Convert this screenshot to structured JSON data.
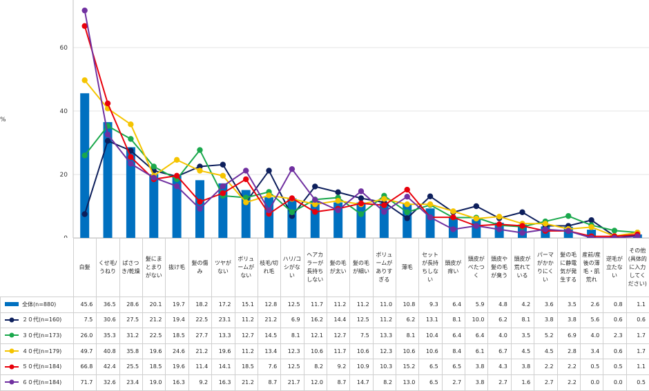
{
  "chart_data": {
    "type": "bar+line",
    "yaxis_unit": "%",
    "ylim": [
      0,
      80
    ],
    "yticks": [
      0,
      20,
      40,
      60
    ],
    "grid": true,
    "categories": [
      "白髪",
      "くせ毛/うねり",
      "ぱさつき/乾燥",
      "髪にまとまりがない",
      "抜け毛",
      "髪の傷み",
      "ツヤがない",
      "ボリュームがない",
      "枝毛/切れ毛",
      "ハリ/コシがない",
      "ヘアカラーが長持ちしない",
      "髪の毛が太い",
      "髪の毛が細い",
      "ボリュームがありすぎる",
      "薄毛",
      "セットが長持ちしない",
      "頭皮が痒い",
      "頭皮がべたつく",
      "頭皮や髪の毛が臭う",
      "頭皮が荒れている",
      "パーマがかかりにくい",
      "髪の毛に静電気が発生する",
      "産前/産後の薄毛・肌荒れ",
      "逆毛が立たない",
      "その他(具体的に入力してください)"
    ],
    "series": [
      {
        "name": "全体(n=880)",
        "kind": "bar",
        "color": "#0070c0",
        "values": [
          45.6,
          36.5,
          28.6,
          20.1,
          19.7,
          18.2,
          17.2,
          15.1,
          12.8,
          12.5,
          11.7,
          11.2,
          11.2,
          11.0,
          10.8,
          9.3,
          6.4,
          5.9,
          4.8,
          4.2,
          3.6,
          3.5,
          2.6,
          0.8,
          1.1
        ]
      },
      {
        "name": "２０代(n=160)",
        "kind": "line",
        "color": "#0d1f5c",
        "values": [
          7.5,
          30.6,
          27.5,
          21.2,
          19.4,
          22.5,
          23.1,
          11.2,
          21.2,
          6.9,
          16.2,
          14.4,
          12.5,
          11.2,
          6.2,
          13.1,
          8.1,
          10.0,
          6.2,
          8.1,
          3.8,
          3.8,
          5.6,
          0.6,
          0.6
        ]
      },
      {
        "name": "３０代(n=173)",
        "kind": "line",
        "color": "#1aa84c",
        "values": [
          26.0,
          35.3,
          31.2,
          22.5,
          18.5,
          27.7,
          13.3,
          12.7,
          14.5,
          8.1,
          12.1,
          12.7,
          7.5,
          13.3,
          8.1,
          10.4,
          6.4,
          6.4,
          4.0,
          3.5,
          5.2,
          6.9,
          4.0,
          2.3,
          1.7
        ]
      },
      {
        "name": "４０代(n=179)",
        "kind": "line",
        "color": "#f5c400",
        "values": [
          49.7,
          40.8,
          35.8,
          19.6,
          24.6,
          21.2,
          19.6,
          11.2,
          13.4,
          12.3,
          10.6,
          11.7,
          10.6,
          12.3,
          10.6,
          10.6,
          8.4,
          6.1,
          6.7,
          4.5,
          4.5,
          2.8,
          3.4,
          0.6,
          1.7
        ]
      },
      {
        "name": "５０代(n=184)",
        "kind": "line",
        "color": "#e8000b",
        "values": [
          66.8,
          42.4,
          25.5,
          18.5,
          19.6,
          11.4,
          14.1,
          18.5,
          7.6,
          12.5,
          8.2,
          9.2,
          10.9,
          10.3,
          15.2,
          6.5,
          6.5,
          3.8,
          4.3,
          3.8,
          2.2,
          2.2,
          0.5,
          0.5,
          1.1
        ]
      },
      {
        "name": "６０代(n=184)",
        "kind": "line",
        "color": "#7030a0",
        "values": [
          71.7,
          32.6,
          23.4,
          19.0,
          16.3,
          9.2,
          16.3,
          21.2,
          8.7,
          21.7,
          12.0,
          8.7,
          14.7,
          8.2,
          13.0,
          6.5,
          2.7,
          3.8,
          2.7,
          1.6,
          2.7,
          2.2,
          0.0,
          0.0,
          0.5
        ]
      }
    ]
  },
  "table": {
    "categories_display": [
      "白髪",
      "くせ毛/うねり",
      "ぱさつき/乾燥",
      "髪にまとまりがない",
      "抜け毛",
      "髪の傷み",
      "ツヤがない",
      "ボリュームがない",
      "枝毛/切れ毛",
      "ハリ/コシがない",
      "ヘアカラーが長持ちしない",
      "髪の毛が太い",
      "髪の毛が細い",
      "ボリュームがありすぎる",
      "薄毛",
      "セットが長持ちしない",
      "頭皮が痒い",
      "頭皮がべたつく",
      "頭皮や髪の毛が臭う",
      "頭皮が荒れている",
      "パーマがかかりにくい",
      "髪の毛に静電気が発生する",
      "産前/産後の薄毛・肌荒れ",
      "逆毛が立たない",
      "その他(具体的に入力してください)"
    ]
  }
}
